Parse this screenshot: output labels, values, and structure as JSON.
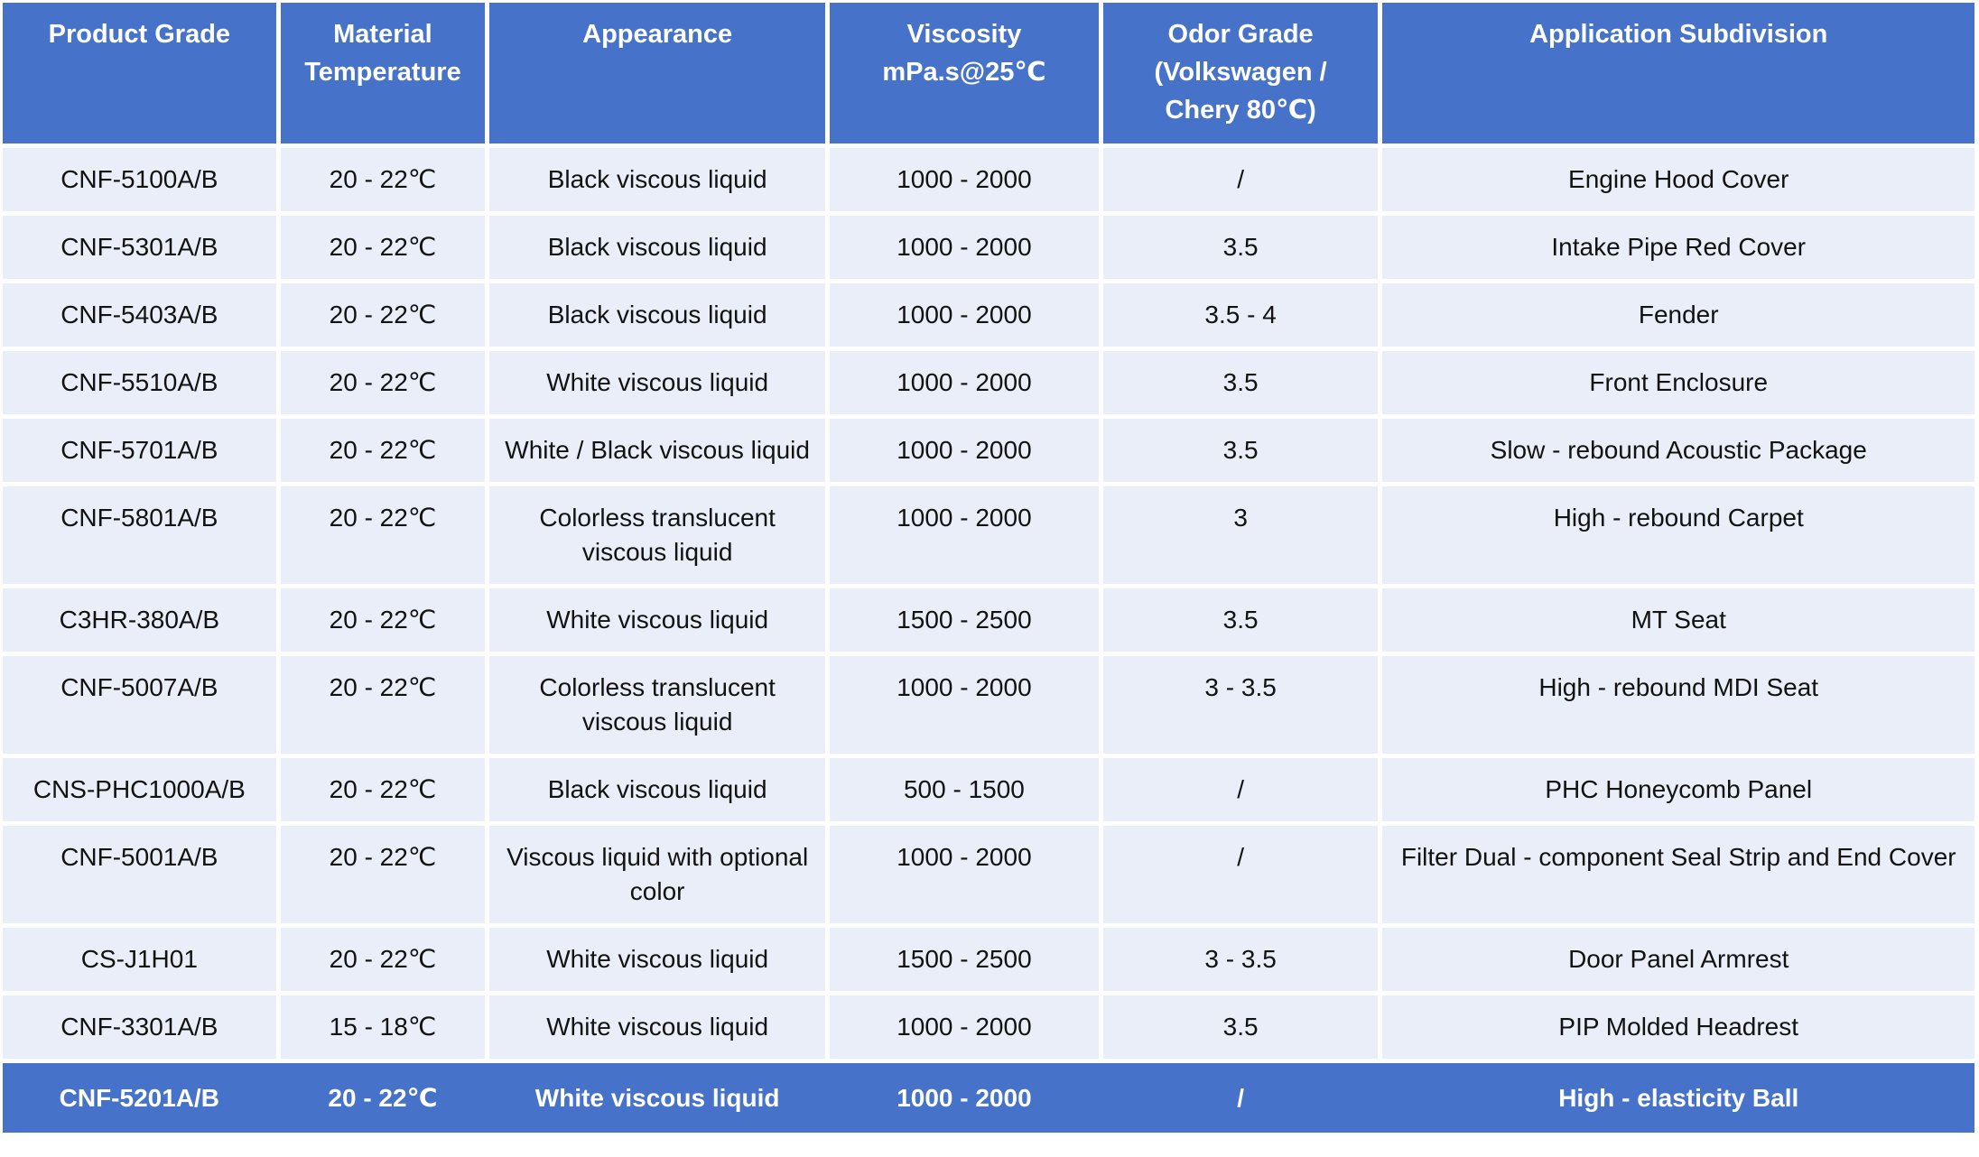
{
  "chart_data": {
    "type": "table",
    "columns": [
      "Product Grade",
      "Material\nTemperature",
      "Appearance",
      "Viscosity\nmPa.s@25℃",
      "Odor Grade\n(Volkswagen /\nChery 80℃)",
      "Application Subdivision"
    ],
    "rows": [
      [
        "CNF-5100A/B",
        "20 - 22℃",
        "Black viscous liquid",
        "1000 - 2000",
        "/",
        "Engine Hood Cover"
      ],
      [
        "CNF-5301A/B",
        "20 - 22℃",
        "Black viscous liquid",
        "1000 - 2000",
        "3.5",
        "Intake Pipe Red Cover"
      ],
      [
        "CNF-5403A/B",
        "20 - 22℃",
        "Black viscous liquid",
        "1000 - 2000",
        "3.5 - 4",
        "Fender"
      ],
      [
        "CNF-5510A/B",
        "20 - 22℃",
        "White viscous liquid",
        "1000 - 2000",
        "3.5",
        "Front Enclosure"
      ],
      [
        "CNF-5701A/B",
        "20 - 22℃",
        "White / Black viscous liquid",
        "1000 - 2000",
        "3.5",
        "Slow - rebound Acoustic Package"
      ],
      [
        "CNF-5801A/B",
        "20 - 22℃",
        "Colorless translucent viscous liquid",
        "1000 - 2000",
        "3",
        "High - rebound Carpet"
      ],
      [
        "C3HR-380A/B",
        "20 - 22℃",
        "White viscous liquid",
        "1500 - 2500",
        "3.5",
        "MT Seat"
      ],
      [
        "CNF-5007A/B",
        "20 - 22℃",
        "Colorless translucent viscous liquid",
        "1000 - 2000",
        "3 - 3.5",
        "High - rebound MDI Seat"
      ],
      [
        "CNS-PHC1000A/B",
        "20 - 22℃",
        "Black viscous liquid",
        "500 - 1500",
        "/",
        "PHC Honeycomb Panel"
      ],
      [
        "CNF-5001A/B",
        "20 - 22℃",
        "Viscous liquid with optional color",
        "1000 - 2000",
        "/",
        "Filter Dual - component Seal Strip and End Cover"
      ],
      [
        "CS-J1H01",
        "20 - 22℃",
        "White viscous liquid",
        "1500 - 2500",
        "3 - 3.5",
        "Door Panel Armrest"
      ],
      [
        "CNF-3301A/B",
        "15 - 18℃",
        "White viscous liquid",
        "1000 - 2000",
        "3.5",
        "PIP Molded Headrest"
      ],
      [
        "CNF-5201A/B",
        "20 - 22℃",
        "White viscous liquid",
        "1000 - 2000",
        "/",
        "High - elasticity Ball"
      ]
    ],
    "highlight_row_index": 12,
    "layout": {
      "grid": "off",
      "header_position": "top"
    }
  },
  "colors": {
    "header_bg": "#4673C9",
    "header_text": "#FFFFFF",
    "row_bg": "#EAEEF8",
    "row_text": "#121212",
    "highlight_row_bg": "#4673C9",
    "highlight_row_text": "#FFFFFF",
    "separator": "#FFFFFF"
  }
}
